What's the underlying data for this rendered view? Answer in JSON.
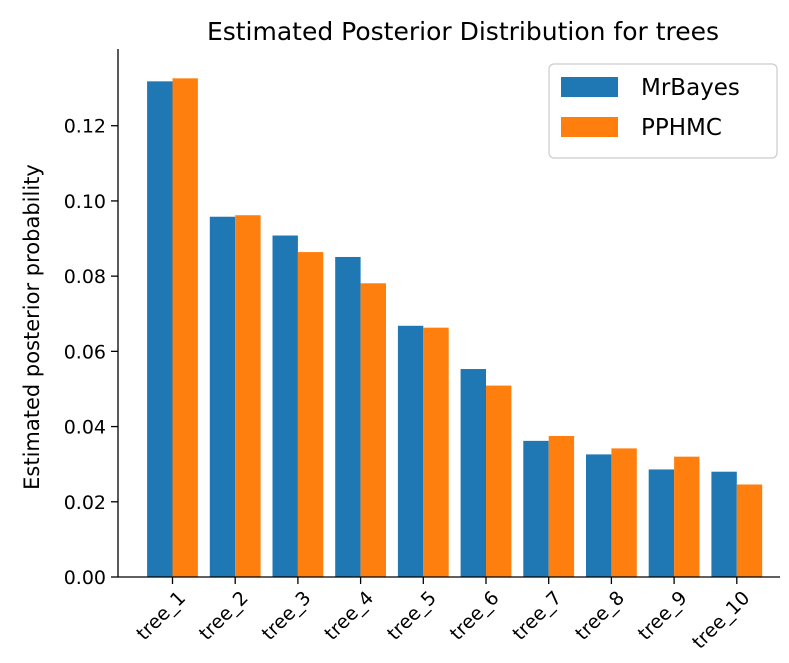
{
  "chart_data": {
    "type": "bar",
    "title": "Estimated Posterior Distribution for trees",
    "xlabel": "",
    "ylabel": "Estimated posterior probability",
    "categories": [
      "tree_1",
      "tree_2",
      "tree_3",
      "tree_4",
      "tree_5",
      "tree_6",
      "tree_7",
      "tree_8",
      "tree_9",
      "tree_10"
    ],
    "series": [
      {
        "name": "MrBayes",
        "color": "#1f77b4",
        "values": [
          0.1318,
          0.0958,
          0.0908,
          0.0851,
          0.0668,
          0.0553,
          0.0362,
          0.0326,
          0.0286,
          0.028
        ]
      },
      {
        "name": "PPHMC",
        "color": "#ff7f0e",
        "values": [
          0.1326,
          0.0962,
          0.0864,
          0.0781,
          0.0663,
          0.0509,
          0.0375,
          0.0342,
          0.032,
          0.0246
        ]
      }
    ],
    "yticks": [
      "0.00",
      "0.02",
      "0.04",
      "0.06",
      "0.08",
      "0.10",
      "0.12"
    ],
    "ylim": [
      0,
      0.1404
    ],
    "grid": false,
    "legend_position": "top-right"
  }
}
